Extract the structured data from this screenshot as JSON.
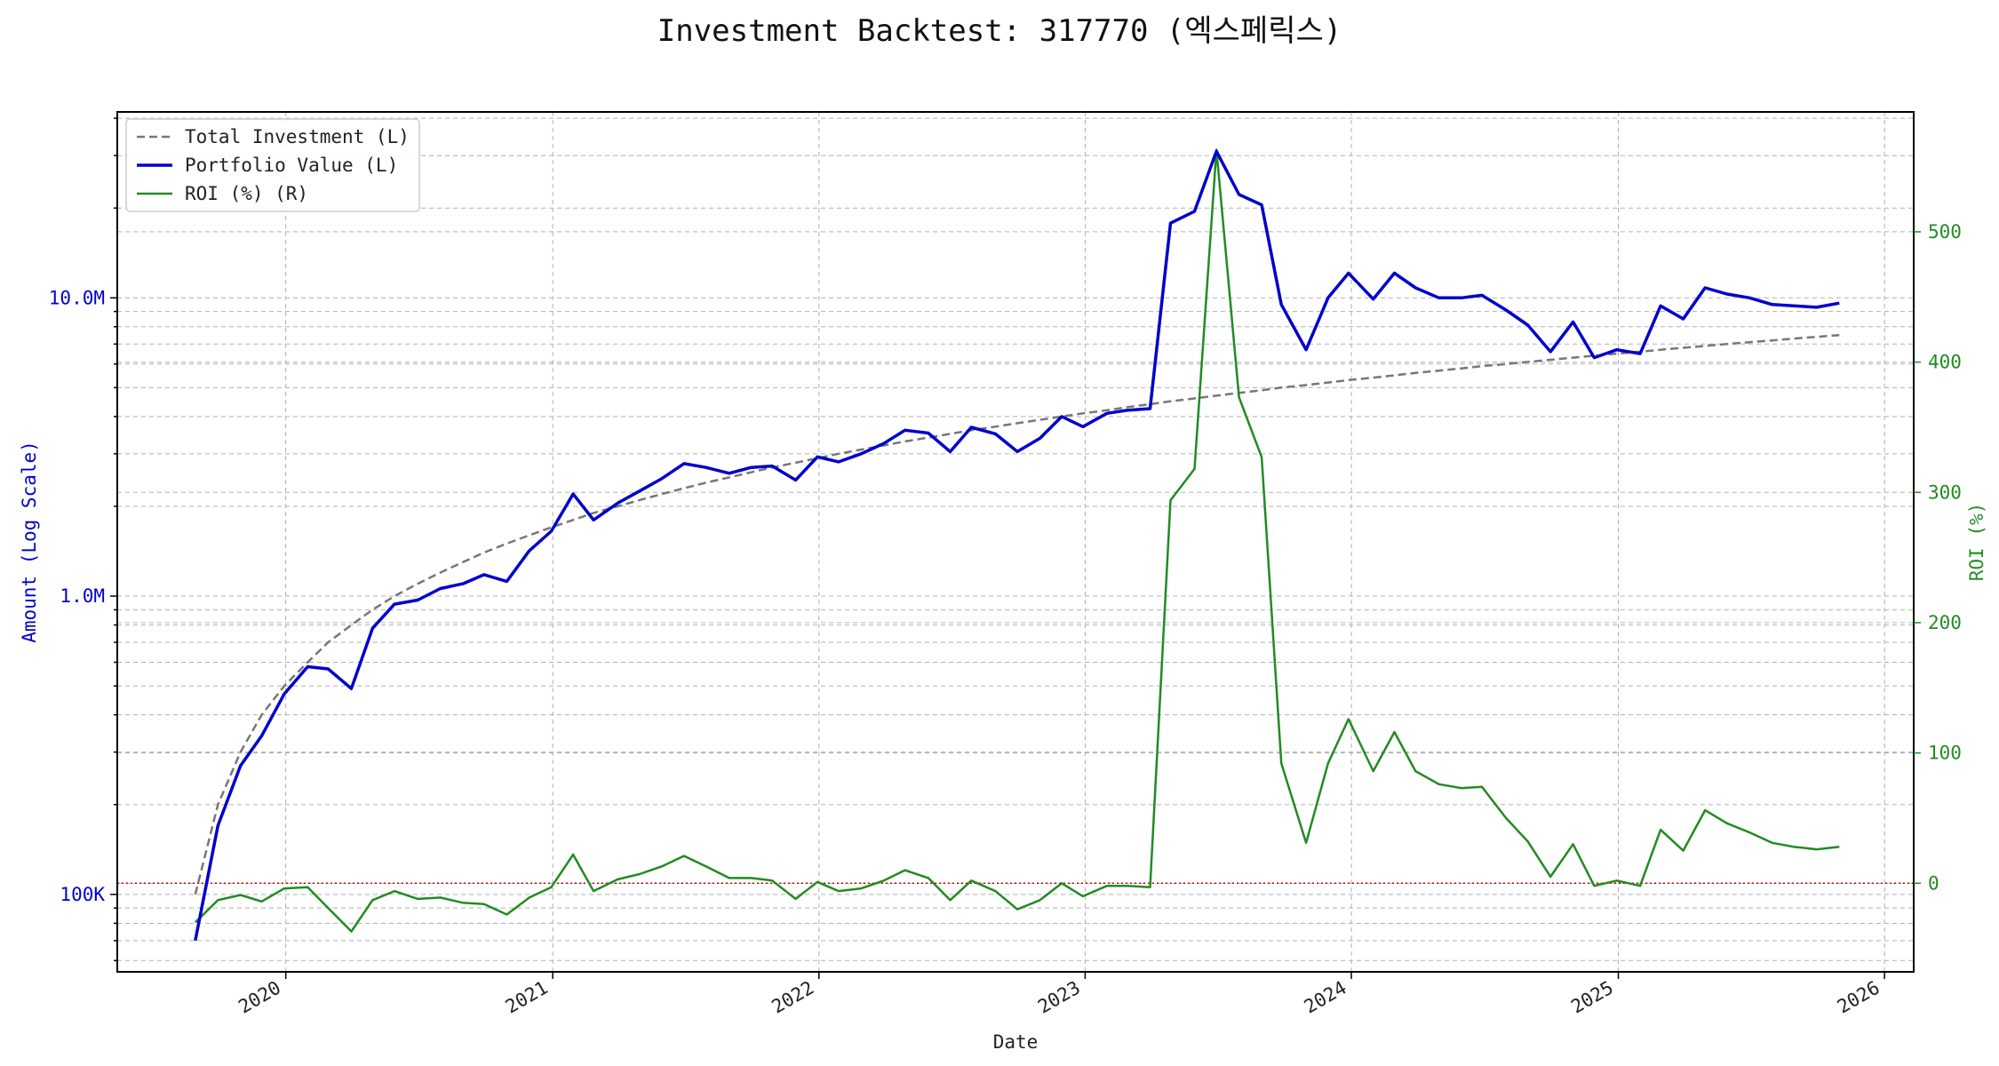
{
  "chart_data": {
    "type": "line",
    "title": "Investment Backtest: 317770 (엑스페릭스)",
    "xlabel": "Date",
    "ylabel_left": "Amount (Log Scale)",
    "ylabel_right": "ROI (%)",
    "left_axis": {
      "scale": "log",
      "ylim": [
        55000,
        42000000
      ],
      "major_ticks": [
        {
          "value": 100000,
          "label": "100K"
        },
        {
          "value": 1000000,
          "label": "1.0M"
        },
        {
          "value": 10000000,
          "label": "10.0M"
        }
      ],
      "color": "#0000cc"
    },
    "right_axis": {
      "scale": "linear",
      "ylim": [
        -68,
        592
      ],
      "ticks": [
        0,
        100,
        200,
        300,
        400,
        500
      ],
      "color": "#228B22"
    },
    "x_axis": {
      "xlim": [
        "2019-05-15",
        "2026-02-10"
      ],
      "ticks": [
        {
          "value": "2020-01-01",
          "label": "2020"
        },
        {
          "value": "2021-01-01",
          "label": "2021"
        },
        {
          "value": "2022-01-01",
          "label": "2022"
        },
        {
          "value": "2023-01-01",
          "label": "2023"
        },
        {
          "value": "2024-01-01",
          "label": "2024"
        },
        {
          "value": "2025-01-01",
          "label": "2025"
        },
        {
          "value": "2026-01-01",
          "label": "2026"
        }
      ]
    },
    "grid": true,
    "legend_position": "upper-left",
    "reference_line": {
      "axis": "right",
      "value": 0,
      "style": "dotted",
      "color": "#cc0000"
    },
    "dates": [
      "2019-08-30",
      "2019-09-30",
      "2019-10-31",
      "2019-11-29",
      "2019-12-30",
      "2020-01-31",
      "2020-02-28",
      "2020-03-31",
      "2020-04-29",
      "2020-05-29",
      "2020-06-30",
      "2020-07-31",
      "2020-08-31",
      "2020-09-29",
      "2020-10-30",
      "2020-11-30",
      "2020-12-30",
      "2021-01-29",
      "2021-02-26",
      "2021-03-31",
      "2021-04-30",
      "2021-05-31",
      "2021-06-30",
      "2021-07-30",
      "2021-08-31",
      "2021-09-30",
      "2021-10-29",
      "2021-11-30",
      "2021-12-30",
      "2022-01-28",
      "2022-02-28",
      "2022-03-31",
      "2022-04-29",
      "2022-05-31",
      "2022-06-30",
      "2022-07-29",
      "2022-08-31",
      "2022-09-30",
      "2022-10-31",
      "2022-11-30",
      "2022-12-29",
      "2023-01-31",
      "2023-02-28",
      "2023-03-31",
      "2023-04-28",
      "2023-05-31",
      "2023-06-30",
      "2023-07-31",
      "2023-08-31",
      "2023-09-27",
      "2023-10-31",
      "2023-11-30",
      "2023-12-28",
      "2024-01-31",
      "2024-02-29",
      "2024-03-29",
      "2024-04-30",
      "2024-05-31",
      "2024-06-28",
      "2024-07-31",
      "2024-08-30",
      "2024-09-30",
      "2024-10-31",
      "2024-11-29",
      "2024-12-30",
      "2025-01-31",
      "2025-02-28",
      "2025-03-31",
      "2025-04-30",
      "2025-05-30",
      "2025-06-30",
      "2025-07-31",
      "2025-08-29",
      "2025-09-30",
      "2025-10-31"
    ],
    "series": [
      {
        "name": "Total Investment (L)",
        "axis": "left",
        "color": "#777777",
        "style": "dashed",
        "values": [
          100000,
          200000,
          300000,
          400000,
          500000,
          600000,
          700000,
          800000,
          900000,
          1000000,
          1100000,
          1200000,
          1300000,
          1400000,
          1500000,
          1600000,
          1700000,
          1800000,
          1900000,
          2000000,
          2100000,
          2200000,
          2300000,
          2400000,
          2500000,
          2600000,
          2700000,
          2800000,
          2900000,
          3000000,
          3100000,
          3200000,
          3300000,
          3400000,
          3500000,
          3600000,
          3700000,
          3800000,
          3900000,
          4000000,
          4100000,
          4200000,
          4300000,
          4400000,
          4500000,
          4600000,
          4700000,
          4800000,
          4900000,
          5000000,
          5100000,
          5200000,
          5300000,
          5400000,
          5500000,
          5600000,
          5700000,
          5800000,
          5900000,
          6000000,
          6100000,
          6200000,
          6300000,
          6400000,
          6500000,
          6600000,
          6700000,
          6800000,
          6900000,
          7000000,
          7100000,
          7200000,
          7300000,
          7400000,
          7500000
        ]
      },
      {
        "name": "Portfolio Value (L)",
        "axis": "left",
        "color": "#0000cc",
        "style": "solid",
        "values": [
          70000,
          170000,
          270000,
          340000,
          470000,
          580000,
          570000,
          490000,
          780000,
          940000,
          970000,
          1060000,
          1100000,
          1180000,
          1120000,
          1420000,
          1650000,
          2200000,
          1800000,
          2050000,
          2250000,
          2480000,
          2780000,
          2700000,
          2580000,
          2700000,
          2730000,
          2450000,
          2930000,
          2820000,
          3000000,
          3250000,
          3600000,
          3520000,
          3050000,
          3680000,
          3500000,
          3050000,
          3380000,
          4000000,
          3700000,
          4100000,
          4200000,
          4250000,
          17800000,
          19500000,
          31000000,
          22200000,
          20500000,
          9500000,
          6700000,
          10000000,
          12100000,
          9900000,
          12100000,
          10800000,
          10000000,
          10000000,
          10200000,
          9100000,
          8100000,
          6600000,
          8300000,
          6300000,
          6700000,
          6500000,
          9400000,
          8500000,
          10800000,
          10300000,
          10000000,
          9500000,
          9400000,
          9300000,
          9600000
        ]
      },
      {
        "name": "ROI (%) (R)",
        "axis": "right",
        "color": "#228B22",
        "style": "solid",
        "values": [
          -30,
          -13,
          -9,
          -14,
          -4,
          -3,
          -19,
          -37,
          -13,
          -6,
          -12,
          -11,
          -15,
          -16,
          -24,
          -11,
          -3,
          22,
          -6,
          3,
          7,
          13,
          21,
          13,
          4,
          4,
          2,
          -12,
          1,
          -6,
          -4,
          2,
          10,
          4,
          -13,
          2,
          -6,
          -20,
          -13,
          0,
          -10,
          -2,
          -2,
          -3,
          294,
          318,
          563,
          373,
          327,
          92,
          31,
          92,
          126,
          86,
          116,
          86,
          76,
          73,
          74,
          50,
          32,
          5,
          30,
          -2,
          2,
          -2,
          41,
          25,
          56,
          46,
          39,
          31,
          28,
          26,
          28
        ]
      }
    ]
  }
}
